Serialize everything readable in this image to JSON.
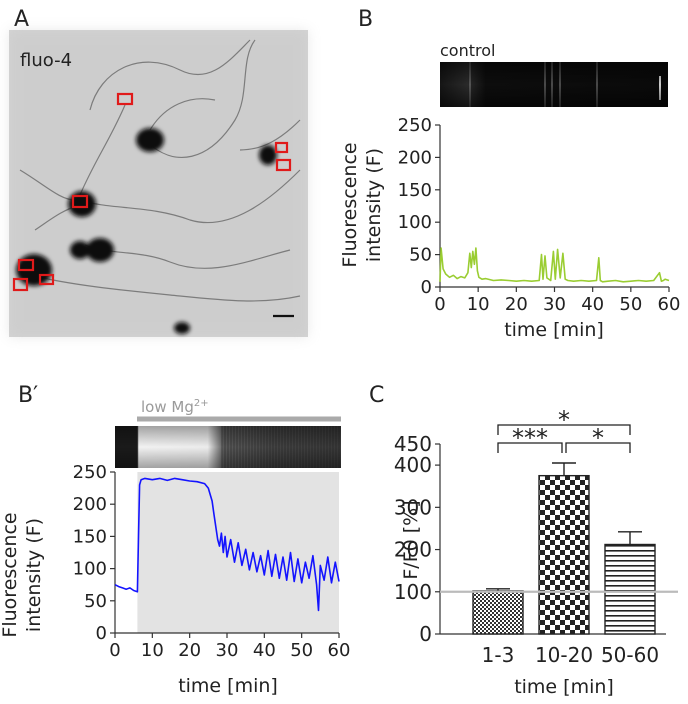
{
  "panels": {
    "a": {
      "letter": "A",
      "stain": "fluo-4"
    },
    "b": {
      "letter": "B",
      "condition": "control"
    },
    "bp": {
      "letter": "B′",
      "condition_prefix": "low Mg",
      "condition_sup": "2+"
    },
    "c": {
      "letter": "C"
    }
  },
  "chart_data": [
    {
      "type": "line",
      "panel": "B",
      "title": "control",
      "xlabel": "time [min]",
      "ylabel": "Fluorescence intensity (F)",
      "xlim": [
        0,
        60
      ],
      "ylim": [
        0,
        250
      ],
      "xticks": [
        0,
        10,
        20,
        30,
        40,
        50,
        60
      ],
      "yticks": [
        0,
        50,
        100,
        150,
        200,
        250
      ],
      "color": "#9acd32",
      "series": [
        {
          "x": [
            0,
            0.3,
            0.8,
            1.5,
            2.5,
            3.5,
            4.5,
            5.5,
            6.5,
            7.3,
            7.8,
            8.2,
            8.6,
            9.0,
            9.4,
            9.8,
            10.2,
            11,
            12,
            14,
            16,
            18,
            20,
            22,
            24,
            26,
            26.6,
            27,
            27.5,
            28,
            29,
            29.7,
            30.2,
            30.8,
            31.5,
            32.2,
            32.8,
            33.5,
            35,
            37,
            39,
            41,
            41.6,
            42,
            42.6,
            44,
            46,
            48,
            50,
            52,
            54,
            56,
            57.5,
            58,
            58.5,
            59,
            60
          ],
          "y": [
            8,
            60,
            28,
            20,
            15,
            18,
            13,
            16,
            14,
            22,
            52,
            30,
            55,
            35,
            60,
            25,
            15,
            12,
            13,
            10,
            11,
            10,
            9,
            10,
            9,
            10,
            50,
            12,
            48,
            14,
            10,
            55,
            12,
            58,
            14,
            52,
            12,
            10,
            9,
            10,
            9,
            10,
            45,
            10,
            8,
            9,
            10,
            8,
            9,
            10,
            9,
            10,
            22,
            9,
            10,
            12,
            10
          ]
        }
      ]
    },
    {
      "type": "line",
      "panel": "B′",
      "xlabel": "time [min]",
      "ylabel": "Fluorescence intensity (F)",
      "xlim": [
        0,
        60
      ],
      "ylim": [
        0,
        250
      ],
      "xticks": [
        0,
        10,
        20,
        30,
        40,
        50,
        60
      ],
      "yticks": [
        0,
        50,
        100,
        150,
        200,
        250
      ],
      "color": "#1414ff",
      "shaded_interval": [
        6,
        60
      ],
      "series": [
        {
          "x": [
            0,
            1,
            2,
            3,
            4,
            5,
            5.5,
            6,
            6.3,
            6.6,
            7,
            8,
            10,
            12,
            14,
            16,
            18,
            20,
            22,
            24,
            25,
            26,
            26.5,
            27,
            27.5,
            28,
            28.5,
            29,
            29.5,
            30,
            31,
            32,
            33,
            34,
            35,
            36,
            37,
            38,
            39,
            40,
            41,
            42,
            43,
            44,
            45,
            46,
            47,
            48,
            49,
            50,
            51,
            52,
            53,
            54,
            54.5,
            55,
            56,
            57,
            58,
            59,
            60
          ],
          "y": [
            75,
            72,
            70,
            68,
            70,
            66,
            65,
            64,
            150,
            230,
            238,
            240,
            238,
            240,
            237,
            240,
            238,
            236,
            235,
            232,
            225,
            205,
            185,
            165,
            145,
            135,
            155,
            125,
            150,
            118,
            145,
            110,
            140,
            105,
            130,
            98,
            125,
            95,
            120,
            90,
            128,
            88,
            122,
            85,
            118,
            82,
            125,
            80,
            115,
            78,
            110,
            85,
            120,
            75,
            35,
            105,
            82,
            118,
            78,
            110,
            80
          ]
        }
      ]
    },
    {
      "type": "bar",
      "panel": "C",
      "xlabel": "time [min]",
      "ylabel": "F/F0  [%]",
      "categories": [
        "1-3",
        "10-20",
        "50-60"
      ],
      "values": [
        102,
        375,
        212
      ],
      "errors": [
        5,
        30,
        30
      ],
      "ylim": [
        0,
        450
      ],
      "yticks": [
        0,
        100,
        200,
        300,
        400,
        450
      ],
      "reference_line": 100,
      "patterns": [
        "dense-check",
        "check",
        "horizontal-lines"
      ],
      "significance": [
        {
          "from": "1-3",
          "to": "10-20",
          "label": "***"
        },
        {
          "from": "10-20",
          "to": "50-60",
          "label": "*"
        },
        {
          "from": "1-3",
          "to": "50-60",
          "label": "*"
        }
      ]
    }
  ]
}
